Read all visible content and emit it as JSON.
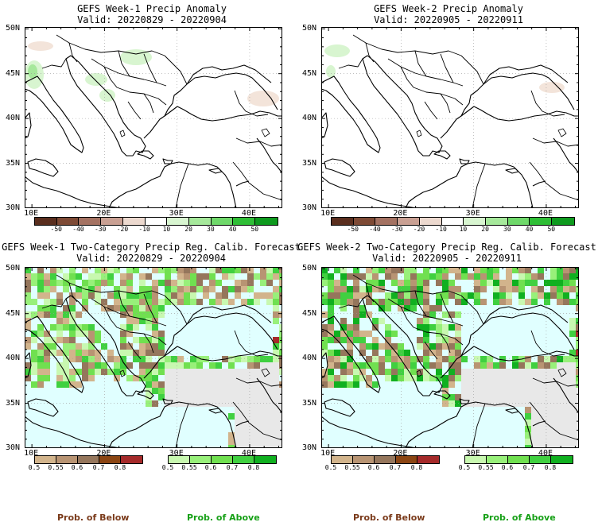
{
  "panels": [
    {
      "id": "p1",
      "title": "GEFS Week-1 Precip Anomaly",
      "valid": "Valid: 20220829 - 20220904",
      "kind": "anomaly"
    },
    {
      "id": "p2",
      "title": "GEFS Week-2 Precip Anomaly",
      "valid": "Valid: 20220905 - 20220911",
      "kind": "anomaly"
    },
    {
      "id": "p3",
      "title": "GEFS Week-1 Two-Category Precip Reg. Calib. Forecast",
      "valid": "Valid: 20220829 - 20220904",
      "kind": "prob"
    },
    {
      "id": "p4",
      "title": "GEFS Week-2 Two-Category Precip Reg. Calib. Forecast",
      "valid": "Valid: 20220905 - 20220911",
      "kind": "prob"
    }
  ],
  "axes": {
    "lat_labels": [
      "50N",
      "45N",
      "40N",
      "35N",
      "30N"
    ],
    "lon_labels": [
      "10E",
      "20E",
      "30E",
      "40E"
    ]
  },
  "anomaly_colorbar": {
    "labels": [
      "-50",
      "-40",
      "-30",
      "-20",
      "-10",
      "10",
      "20",
      "30",
      "40",
      "50"
    ],
    "colors": [
      "#5a2e1e",
      "#7e4a35",
      "#a47262",
      "#c9a093",
      "#ecd9cf",
      "#ffffff",
      "#d8f5d0",
      "#a6e89b",
      "#6fd86a",
      "#2fbe36",
      "#0e9a1e"
    ]
  },
  "below_colorbar": {
    "labels": [
      "0.5",
      "0.55",
      "0.6",
      "0.7",
      "0.8"
    ],
    "colors": [
      "#d2b48c",
      "#b89473",
      "#95765c",
      "#8b4513",
      "#a52a2a"
    ]
  },
  "above_colorbar": {
    "labels": [
      "0.5",
      "0.55",
      "0.6",
      "0.7",
      "0.8"
    ],
    "colors": [
      "#c8f8b0",
      "#98f07a",
      "#70e050",
      "#40d040",
      "#10b020"
    ]
  },
  "legend": {
    "below": "Prob. of Below",
    "above": "Prob. of Above",
    "below_color": "#7a3a1a",
    "above_color": "#16a016"
  },
  "colors": {
    "sea_prob": "#e0ffff",
    "nodata": "#e8e8e8",
    "coast": "#000000"
  }
}
